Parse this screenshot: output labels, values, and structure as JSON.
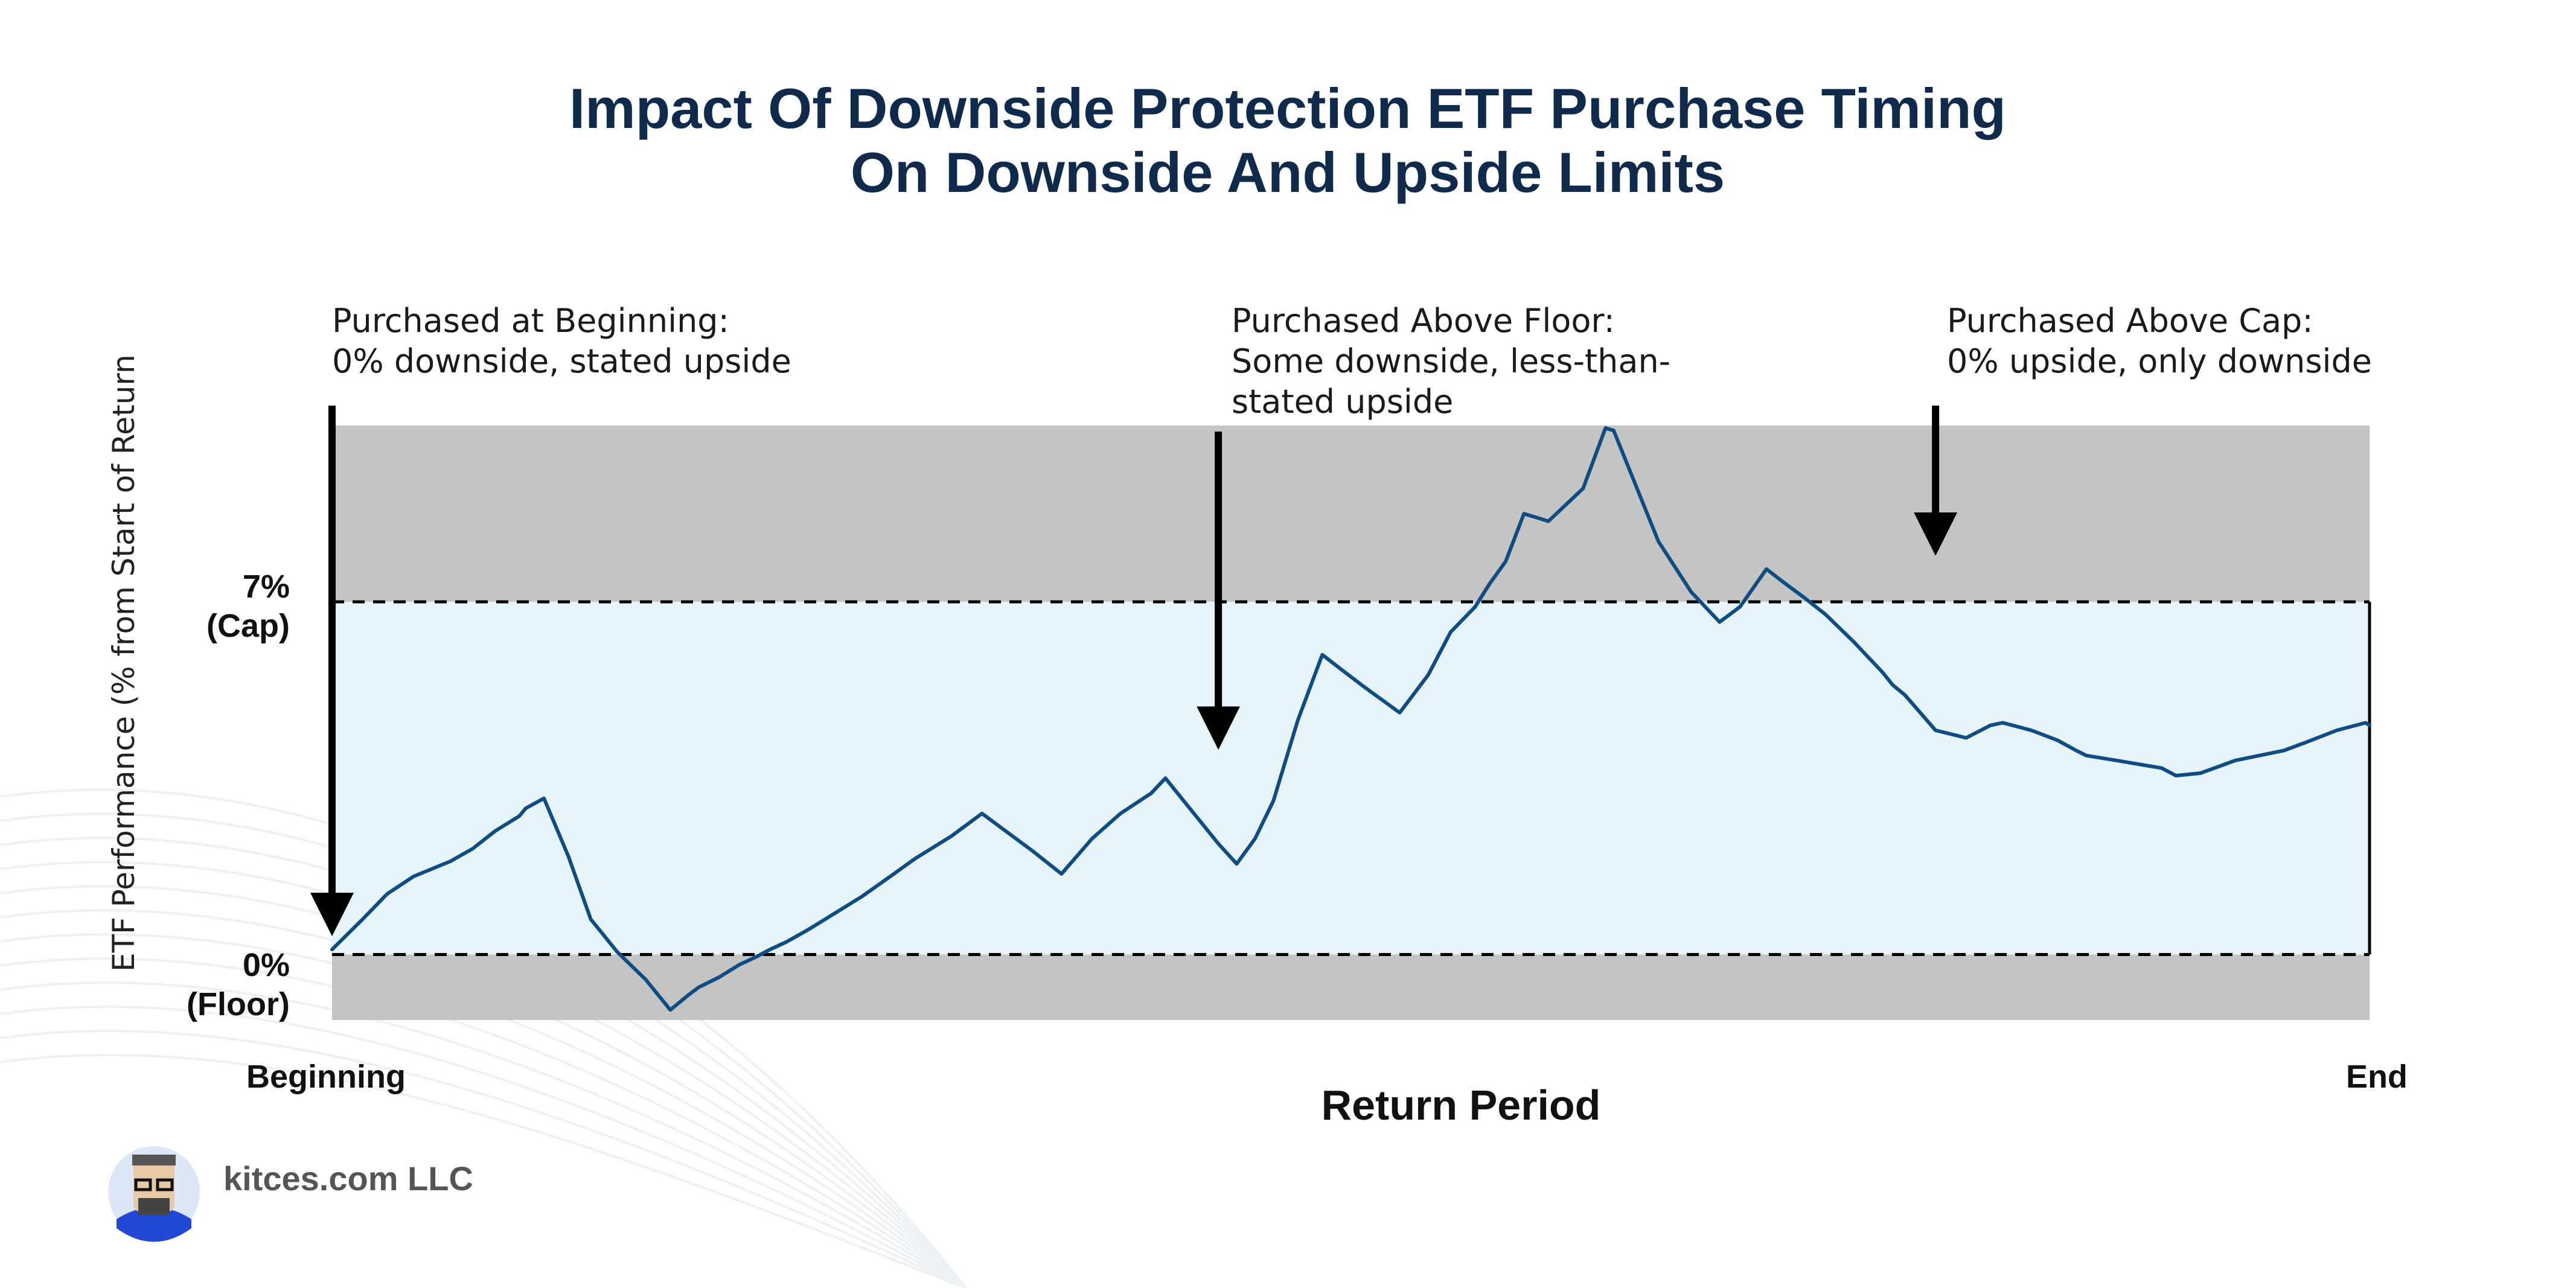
{
  "chart_data": {
    "type": "line",
    "title_lines": [
      "Impact Of Downside Protection ETF Purchase Timing",
      "On Downside And Upside Limits"
    ],
    "xlabel": "Return Period",
    "ylabel": "ETF Performance (% from Start of Return",
    "x_tick_labels": [
      "Beginning",
      "End"
    ],
    "xlim": [
      0,
      100
    ],
    "ylim": [
      -1.3,
      10.5
    ],
    "floor": {
      "value": 0,
      "labels": [
        "0%",
        "(Floor)"
      ]
    },
    "cap": {
      "value": 7,
      "labels": [
        "7%",
        "(Cap)"
      ]
    },
    "colors": {
      "line": "#0f4c81",
      "band": "#e6f3f8",
      "outside": "#c4c4c4",
      "arrow": "#000000",
      "title": "#102a4c"
    },
    "series": [
      {
        "x": [
          0,
          1.5,
          2.7,
          4,
          4.9,
          5.8,
          6.9,
          8,
          9.2,
          9.5,
          10.4,
          11.6,
          12.7,
          13.2,
          14,
          15.4,
          16.6,
          17.5,
          18,
          19,
          20,
          20.8,
          21.5,
          22.3,
          23.4,
          24.6,
          26,
          27.4,
          28.6,
          30.4,
          31.9,
          34.4,
          35.8,
          37.3,
          38.7,
          40.2,
          40.9,
          42,
          43.5,
          44.4,
          45.3,
          46.2,
          47.4,
          48.6,
          49.4,
          50.7,
          52.4,
          53.8,
          54.9,
          56.1,
          56.8,
          57.6,
          58.5,
          59.7,
          61.4,
          62.5,
          62.9,
          63.8,
          64.3,
          65.1,
          66.7,
          68.1,
          69.1,
          70.4,
          71.2,
          72.2,
          73.3,
          74.7,
          76.1,
          76.6,
          77.2,
          78.7,
          80.2,
          81.4,
          82,
          83.4,
          84.7,
          85.6,
          86.1,
          87.6,
          89.8,
          90.5,
          91.7,
          93.4,
          95.8,
          96.8,
          98.4,
          99.8,
          100
        ],
        "y": [
          0.1,
          0.7,
          1.2,
          1.55,
          1.7,
          1.85,
          2.1,
          2.45,
          2.75,
          2.9,
          3.1,
          1.95,
          0.7,
          0.45,
          0.05,
          -0.5,
          -1.1,
          -0.8,
          -0.65,
          -0.45,
          -0.2,
          -0.05,
          0.1,
          0.25,
          0.5,
          0.8,
          1.15,
          1.55,
          1.9,
          2.35,
          2.8,
          2.05,
          1.6,
          2.3,
          2.8,
          3.2,
          3.5,
          2.95,
          2.2,
          1.8,
          2.3,
          3.05,
          4.65,
          5.95,
          5.7,
          5.3,
          4.8,
          5.55,
          6.4,
          6.9,
          7.35,
          7.8,
          8.75,
          8.6,
          9.25,
          10.45,
          10.4,
          9.5,
          9,
          8.2,
          7.2,
          6.6,
          6.9,
          7.65,
          7.4,
          7.1,
          6.75,
          6.2,
          5.6,
          5.35,
          5.15,
          4.45,
          4.3,
          4.55,
          4.6,
          4.45,
          4.25,
          4.05,
          3.95,
          3.85,
          3.7,
          3.55,
          3.6,
          3.85,
          4.05,
          4.2,
          4.45,
          4.6,
          4.55
        ]
      }
    ],
    "annotations": [
      {
        "lines": [
          "Purchased at Beginning:",
          "0% downside, stated upside"
        ],
        "x": 0,
        "y": 0.1
      },
      {
        "lines": [
          "Purchased Above Floor:",
          "Some downside, less-than-",
          "stated upside"
        ],
        "x": 43.5,
        "y": 3.8
      },
      {
        "lines": [
          "Purchased Above Cap:",
          "0% upside, only downside"
        ],
        "x": 78.7,
        "y": 7.65
      }
    ],
    "logo": {
      "text": "kitces.com LLC",
      "icon": "avatar-icon"
    }
  }
}
